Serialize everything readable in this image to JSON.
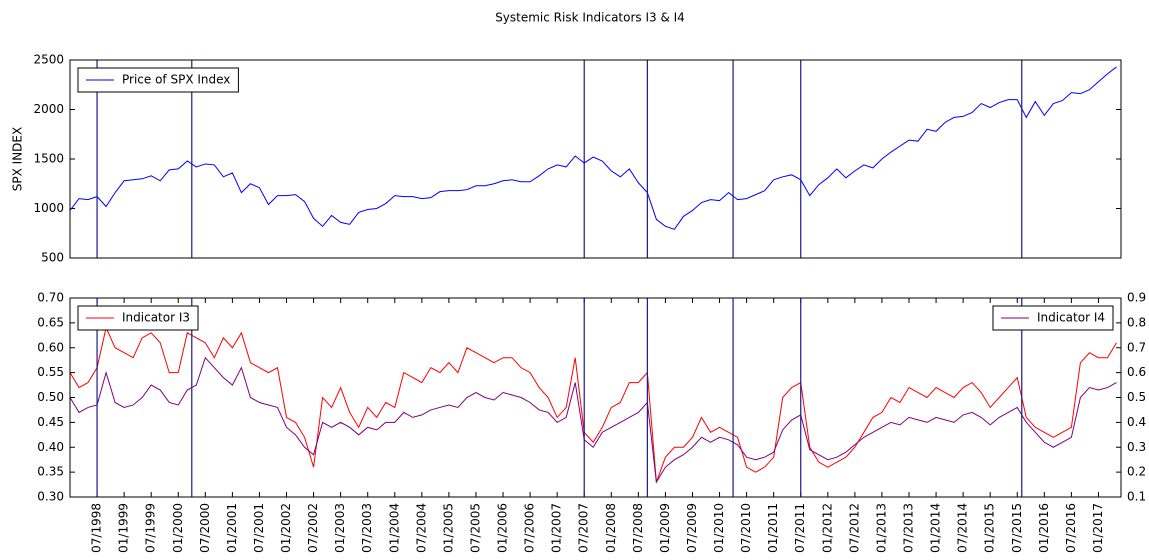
{
  "chart_data": [
    {
      "type": "line",
      "title": "Systemic Risk Indicators I3 & I4",
      "ylabel": "SPX INDEX",
      "x": [
        "1998-01",
        "1998-03",
        "1998-05",
        "1998-07",
        "1998-09",
        "1998-11",
        "1999-01",
        "1999-03",
        "1999-05",
        "1999-07",
        "1999-09",
        "1999-11",
        "2000-01",
        "2000-03",
        "2000-05",
        "2000-07",
        "2000-09",
        "2000-11",
        "2001-01",
        "2001-03",
        "2001-05",
        "2001-07",
        "2001-09",
        "2001-11",
        "2002-01",
        "2002-03",
        "2002-05",
        "2002-07",
        "2002-09",
        "2002-11",
        "2003-01",
        "2003-03",
        "2003-05",
        "2003-07",
        "2003-09",
        "2003-11",
        "2004-01",
        "2004-03",
        "2004-05",
        "2004-07",
        "2004-09",
        "2004-11",
        "2005-01",
        "2005-03",
        "2005-05",
        "2005-07",
        "2005-09",
        "2005-11",
        "2006-01",
        "2006-03",
        "2006-05",
        "2006-07",
        "2006-09",
        "2006-11",
        "2007-01",
        "2007-03",
        "2007-05",
        "2007-07",
        "2007-09",
        "2007-11",
        "2008-01",
        "2008-03",
        "2008-05",
        "2008-07",
        "2008-09",
        "2008-11",
        "2009-01",
        "2009-03",
        "2009-05",
        "2009-07",
        "2009-09",
        "2009-11",
        "2010-01",
        "2010-03",
        "2010-05",
        "2010-07",
        "2010-09",
        "2010-11",
        "2011-01",
        "2011-03",
        "2011-05",
        "2011-07",
        "2011-09",
        "2011-11",
        "2012-01",
        "2012-03",
        "2012-05",
        "2012-07",
        "2012-09",
        "2012-11",
        "2013-01",
        "2013-03",
        "2013-05",
        "2013-07",
        "2013-09",
        "2013-11",
        "2014-01",
        "2014-03",
        "2014-05",
        "2014-07",
        "2014-09",
        "2014-11",
        "2015-01",
        "2015-03",
        "2015-05",
        "2015-07",
        "2015-09",
        "2015-11",
        "2016-01",
        "2016-03",
        "2016-05",
        "2016-07",
        "2016-09",
        "2016-11",
        "2017-01",
        "2017-03",
        "2017-05"
      ],
      "series": [
        {
          "name": "Price of SPX Index",
          "color": "#0000ff",
          "legend": "upper left",
          "values": [
            980,
            1100,
            1090,
            1120,
            1020,
            1160,
            1280,
            1290,
            1300,
            1330,
            1280,
            1390,
            1400,
            1480,
            1420,
            1450,
            1440,
            1320,
            1360,
            1160,
            1250,
            1210,
            1040,
            1130,
            1130,
            1140,
            1070,
            900,
            820,
            930,
            860,
            840,
            960,
            990,
            1000,
            1050,
            1130,
            1120,
            1120,
            1100,
            1110,
            1170,
            1180,
            1180,
            1190,
            1230,
            1230,
            1250,
            1280,
            1290,
            1270,
            1270,
            1330,
            1400,
            1440,
            1420,
            1530,
            1460,
            1520,
            1480,
            1380,
            1320,
            1400,
            1260,
            1160,
            890,
            820,
            790,
            920,
            980,
            1060,
            1090,
            1080,
            1160,
            1090,
            1100,
            1140,
            1180,
            1290,
            1320,
            1340,
            1290,
            1130,
            1240,
            1310,
            1400,
            1310,
            1380,
            1440,
            1410,
            1500,
            1570,
            1630,
            1690,
            1680,
            1800,
            1780,
            1870,
            1920,
            1930,
            1970,
            2060,
            2020,
            2070,
            2100,
            2100,
            1920,
            2080,
            1940,
            2060,
            2090,
            2170,
            2160,
            2200,
            2280,
            2360,
            2430
          ]
        }
      ],
      "xlim": [
        "1998-01",
        "2017-06"
      ],
      "ylim": [
        500,
        2500
      ],
      "yticks": [
        500,
        1000,
        1500,
        2000,
        2500
      ],
      "vlines": [
        "1998-07",
        "2000-04",
        "2007-07",
        "2008-09",
        "2010-04",
        "2011-07",
        "2015-08"
      ],
      "vline_color": "#1a1a8c"
    },
    {
      "type": "line",
      "x": [
        "1998-01",
        "1998-03",
        "1998-05",
        "1998-07",
        "1998-09",
        "1998-11",
        "1999-01",
        "1999-03",
        "1999-05",
        "1999-07",
        "1999-09",
        "1999-11",
        "2000-01",
        "2000-03",
        "2000-05",
        "2000-07",
        "2000-09",
        "2000-11",
        "2001-01",
        "2001-03",
        "2001-05",
        "2001-07",
        "2001-09",
        "2001-11",
        "2002-01",
        "2002-03",
        "2002-05",
        "2002-07",
        "2002-09",
        "2002-11",
        "2003-01",
        "2003-03",
        "2003-05",
        "2003-07",
        "2003-09",
        "2003-11",
        "2004-01",
        "2004-03",
        "2004-05",
        "2004-07",
        "2004-09",
        "2004-11",
        "2005-01",
        "2005-03",
        "2005-05",
        "2005-07",
        "2005-09",
        "2005-11",
        "2006-01",
        "2006-03",
        "2006-05",
        "2006-07",
        "2006-09",
        "2006-11",
        "2007-01",
        "2007-03",
        "2007-05",
        "2007-07",
        "2007-09",
        "2007-11",
        "2008-01",
        "2008-03",
        "2008-05",
        "2008-07",
        "2008-09",
        "2008-11",
        "2009-01",
        "2009-03",
        "2009-05",
        "2009-07",
        "2009-09",
        "2009-11",
        "2010-01",
        "2010-03",
        "2010-05",
        "2010-07",
        "2010-09",
        "2010-11",
        "2011-01",
        "2011-03",
        "2011-05",
        "2011-07",
        "2011-09",
        "2011-11",
        "2012-01",
        "2012-03",
        "2012-05",
        "2012-07",
        "2012-09",
        "2012-11",
        "2013-01",
        "2013-03",
        "2013-05",
        "2013-07",
        "2013-09",
        "2013-11",
        "2014-01",
        "2014-03",
        "2014-05",
        "2014-07",
        "2014-09",
        "2014-11",
        "2015-01",
        "2015-03",
        "2015-05",
        "2015-07",
        "2015-09",
        "2015-11",
        "2016-01",
        "2016-03",
        "2016-05",
        "2016-07",
        "2016-09",
        "2016-11",
        "2017-01",
        "2017-03",
        "2017-05"
      ],
      "series": [
        {
          "name": "Indicator I3",
          "color": "#ff0000",
          "legend": "upper left",
          "values": [
            0.55,
            0.52,
            0.53,
            0.56,
            0.64,
            0.6,
            0.59,
            0.58,
            0.62,
            0.63,
            0.61,
            0.55,
            0.55,
            0.63,
            0.62,
            0.61,
            0.58,
            0.62,
            0.6,
            0.63,
            0.57,
            0.56,
            0.55,
            0.56,
            0.46,
            0.45,
            0.42,
            0.36,
            0.5,
            0.48,
            0.52,
            0.47,
            0.44,
            0.48,
            0.46,
            0.49,
            0.48,
            0.55,
            0.54,
            0.53,
            0.56,
            0.55,
            0.57,
            0.55,
            0.6,
            0.59,
            0.58,
            0.57,
            0.58,
            0.58,
            0.56,
            0.55,
            0.52,
            0.5,
            0.46,
            0.48,
            0.58,
            0.43,
            0.41,
            0.44,
            0.48,
            0.49,
            0.53,
            0.53,
            0.55,
            0.33,
            0.38,
            0.4,
            0.4,
            0.42,
            0.46,
            0.43,
            0.44,
            0.43,
            0.42,
            0.36,
            0.35,
            0.36,
            0.38,
            0.5,
            0.52,
            0.53,
            0.4,
            0.37,
            0.36,
            0.37,
            0.38,
            0.4,
            0.43,
            0.46,
            0.47,
            0.5,
            0.49,
            0.52,
            0.51,
            0.5,
            0.52,
            0.51,
            0.5,
            0.52,
            0.53,
            0.51,
            0.48,
            0.5,
            0.52,
            0.54,
            0.46,
            0.44,
            0.43,
            0.42,
            0.43,
            0.44,
            0.57,
            0.59,
            0.58,
            0.58,
            0.61
          ]
        },
        {
          "name": "Indicator I4",
          "color": "#800080",
          "legend": "upper right",
          "axis": "y2",
          "values": [
            0.5,
            0.44,
            0.46,
            0.47,
            0.6,
            0.48,
            0.46,
            0.47,
            0.5,
            0.55,
            0.53,
            0.48,
            0.47,
            0.53,
            0.55,
            0.66,
            0.62,
            0.58,
            0.55,
            0.62,
            0.5,
            0.48,
            0.47,
            0.46,
            0.38,
            0.35,
            0.3,
            0.27,
            0.4,
            0.38,
            0.4,
            0.38,
            0.35,
            0.38,
            0.37,
            0.4,
            0.4,
            0.44,
            0.42,
            0.43,
            0.45,
            0.46,
            0.47,
            0.46,
            0.5,
            0.52,
            0.5,
            0.49,
            0.52,
            0.51,
            0.5,
            0.48,
            0.45,
            0.44,
            0.4,
            0.42,
            0.56,
            0.33,
            0.3,
            0.36,
            0.38,
            0.4,
            0.42,
            0.44,
            0.48,
            0.16,
            0.22,
            0.25,
            0.27,
            0.3,
            0.34,
            0.32,
            0.34,
            0.33,
            0.31,
            0.26,
            0.25,
            0.26,
            0.28,
            0.37,
            0.41,
            0.43,
            0.29,
            0.27,
            0.25,
            0.26,
            0.28,
            0.31,
            0.34,
            0.36,
            0.38,
            0.4,
            0.39,
            0.42,
            0.41,
            0.4,
            0.42,
            0.41,
            0.4,
            0.43,
            0.44,
            0.42,
            0.39,
            0.42,
            0.44,
            0.46,
            0.4,
            0.36,
            0.32,
            0.3,
            0.32,
            0.34,
            0.5,
            0.54,
            0.53,
            0.54,
            0.56
          ]
        }
      ],
      "xlim": [
        "1998-01",
        "2017-06"
      ],
      "ylim": [
        0.3,
        0.7
      ],
      "yticks": [
        {
          "value": 0.3,
          "label": "0.30"
        },
        0.35,
        {
          "value": 0.4,
          "label": "0.40"
        },
        0.45,
        {
          "value": 0.5,
          "label": "0.50"
        },
        0.55,
        {
          "value": 0.6,
          "label": "0.60"
        },
        0.65,
        {
          "value": 0.7,
          "label": "0.70"
        }
      ],
      "y2lim": [
        0.1,
        0.9
      ],
      "y2ticks": [
        0.1,
        0.2,
        0.3,
        0.4,
        0.5,
        0.6,
        0.7,
        0.8,
        0.9
      ],
      "xticks": [
        {
          "value": "1998-07",
          "label": "07/1998"
        },
        {
          "value": "1999-01",
          "label": "01/1999"
        },
        {
          "value": "1999-07",
          "label": "07/1999"
        },
        {
          "value": "2000-01",
          "label": "01/2000"
        },
        {
          "value": "2000-07",
          "label": "07/2000"
        },
        {
          "value": "2001-01",
          "label": "01/2001"
        },
        {
          "value": "2001-07",
          "label": "07/2001"
        },
        {
          "value": "2002-01",
          "label": "01/2002"
        },
        {
          "value": "2002-07",
          "label": "07/2002"
        },
        {
          "value": "2003-01",
          "label": "01/2003"
        },
        {
          "value": "2003-07",
          "label": "07/2003"
        },
        {
          "value": "2004-01",
          "label": "01/2004"
        },
        {
          "value": "2004-07",
          "label": "07/2004"
        },
        {
          "value": "2005-01",
          "label": "01/2005"
        },
        {
          "value": "2005-07",
          "label": "07/2005"
        },
        {
          "value": "2006-01",
          "label": "01/2006"
        },
        {
          "value": "2006-07",
          "label": "07/2006"
        },
        {
          "value": "2007-01",
          "label": "01/2007"
        },
        {
          "value": "2007-07",
          "label": "07/2007"
        },
        {
          "value": "2008-01",
          "label": "01/2008"
        },
        {
          "value": "2008-07",
          "label": "07/2008"
        },
        {
          "value": "2009-01",
          "label": "01/2009"
        },
        {
          "value": "2009-07",
          "label": "07/2009"
        },
        {
          "value": "2010-01",
          "label": "01/2010"
        },
        {
          "value": "2010-07",
          "label": "07/2010"
        },
        {
          "value": "2011-01",
          "label": "01/2011"
        },
        {
          "value": "2011-07",
          "label": "07/2011"
        },
        {
          "value": "2012-01",
          "label": "01/2012"
        },
        {
          "value": "2012-07",
          "label": "07/2012"
        },
        {
          "value": "2013-01",
          "label": "01/2013"
        },
        {
          "value": "2013-07",
          "label": "07/2013"
        },
        {
          "value": "2014-01",
          "label": "01/2014"
        },
        {
          "value": "2014-07",
          "label": "07/2014"
        },
        {
          "value": "2015-01",
          "label": "01/2015"
        },
        {
          "value": "2015-07",
          "label": "07/2015"
        },
        {
          "value": "2016-01",
          "label": "01/2016"
        },
        {
          "value": "2016-07",
          "label": "07/2016"
        },
        {
          "value": "2017-01",
          "label": "01/2017"
        }
      ],
      "vlines": [
        "1998-07",
        "2000-04",
        "2007-07",
        "2008-09",
        "2010-04",
        "2011-07",
        "2015-08"
      ],
      "vline_color": "#1a1a8c"
    }
  ]
}
